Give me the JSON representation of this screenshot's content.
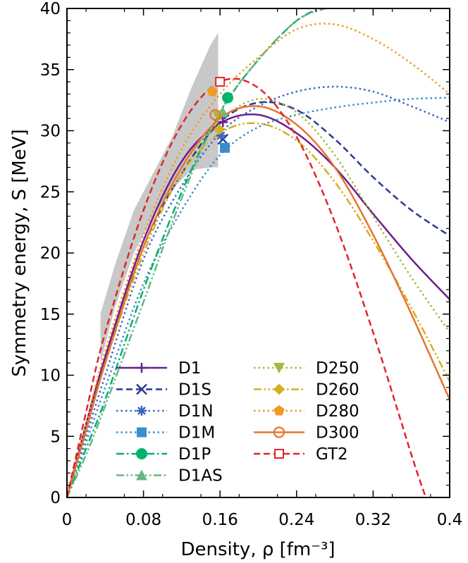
{
  "chart_data": {
    "type": "line",
    "xlabel": "Density, ρ [fm⁻³]",
    "ylabel": "Symmetry energy, S [MeV]",
    "xlim": [
      0,
      0.4
    ],
    "ylim": [
      0,
      40
    ],
    "x_tick_labels": [
      "0",
      "0.08",
      "0.16",
      "0.24",
      "0.32",
      "0.4"
    ],
    "y_tick_labels": [
      "0",
      "5",
      "10",
      "15",
      "20",
      "25",
      "30",
      "35",
      "40"
    ],
    "legend_position": "bottom-left",
    "constraint_band": {
      "x": [
        0.035,
        0.05,
        0.07,
        0.09,
        0.11,
        0.13,
        0.15,
        0.158
      ],
      "lower": [
        11.0,
        15.5,
        20.0,
        23.0,
        25.2,
        26.8,
        27.0,
        27.0
      ],
      "upper": [
        15.0,
        19.0,
        23.5,
        26.5,
        29.5,
        33.5,
        37.0,
        38.0
      ],
      "color": "#c8c8c8"
    },
    "series": [
      {
        "name": "D1",
        "color": "#6a1e8c",
        "dash": "solid",
        "marker": "plus",
        "x": [
          0,
          0.02,
          0.04,
          0.08,
          0.12,
          0.16,
          0.2,
          0.24,
          0.28,
          0.32,
          0.36,
          0.4
        ],
        "y": [
          0,
          6,
          11.5,
          21,
          27.5,
          30.6,
          31.3,
          29.8,
          27,
          23.2,
          19.5,
          16.2
        ],
        "point": [
          0.163,
          30.7
        ]
      },
      {
        "name": "D1S",
        "color": "#2b3a8f",
        "dash": "dash",
        "marker": "x",
        "x": [
          0,
          0.02,
          0.04,
          0.08,
          0.12,
          0.16,
          0.2,
          0.24,
          0.28,
          0.32,
          0.36,
          0.4
        ],
        "y": [
          0,
          5.5,
          11,
          20.5,
          26.5,
          30.7,
          32.3,
          31.7,
          29.3,
          26.2,
          23.5,
          21.4
        ],
        "point": [
          0.163,
          29.3
        ]
      },
      {
        "name": "D1N",
        "color": "#3a66c4",
        "dash": "dot",
        "marker": "asterisk",
        "x": [
          0,
          0.02,
          0.04,
          0.08,
          0.12,
          0.16,
          0.2,
          0.24,
          0.28,
          0.32,
          0.36,
          0.4
        ],
        "y": [
          0,
          5,
          10,
          19.5,
          25.5,
          29.8,
          32,
          33.2,
          33.6,
          33.2,
          32,
          30.7
        ],
        "point": [
          0.161,
          29.6
        ]
      },
      {
        "name": "D1M",
        "color": "#3a8ecc",
        "dash": "dot",
        "marker": "square",
        "x": [
          0,
          0.02,
          0.04,
          0.08,
          0.12,
          0.16,
          0.2,
          0.24,
          0.28,
          0.32,
          0.36,
          0.4
        ],
        "y": [
          0,
          4.5,
          9,
          17.5,
          23.5,
          28,
          30.3,
          31.3,
          31.9,
          32.3,
          32.6,
          32.7
        ],
        "point": [
          0.165,
          28.6
        ]
      },
      {
        "name": "D1P",
        "color": "#00b36b",
        "dash": "dashdot",
        "marker": "circle",
        "x": [
          0,
          0.02,
          0.04,
          0.08,
          0.12,
          0.16,
          0.2,
          0.24,
          0.265
        ],
        "y": [
          0,
          4,
          8,
          17,
          25,
          31.5,
          35.8,
          39,
          40
        ],
        "point": [
          0.168,
          32.7
        ]
      },
      {
        "name": "D1AS",
        "color": "#6bb586",
        "dash": "dashdotdot",
        "marker": "triangle",
        "x": [
          0,
          0.02,
          0.04,
          0.08,
          0.12,
          0.16,
          0.2,
          0.24,
          0.27
        ],
        "y": [
          0,
          3.5,
          7.5,
          16,
          24.5,
          31.5,
          35.8,
          39,
          40
        ],
        "point": [
          0.163,
          31.5
        ]
      },
      {
        "name": "D250",
        "color": "#a7b83c",
        "dash": "dot",
        "marker": "triangle-down",
        "x": [
          0,
          0.02,
          0.04,
          0.08,
          0.12,
          0.16,
          0.2,
          0.24,
          0.28,
          0.32,
          0.36,
          0.4
        ],
        "y": [
          0,
          5.5,
          11,
          20.5,
          27,
          30.8,
          32.6,
          31.5,
          28,
          23,
          18,
          13.5
        ],
        "point": [
          0.158,
          31.2
        ]
      },
      {
        "name": "D260",
        "color": "#d4b020",
        "dash": "dashdotdot",
        "marker": "diamond",
        "x": [
          0,
          0.02,
          0.04,
          0.08,
          0.12,
          0.16,
          0.2,
          0.24,
          0.28,
          0.32,
          0.36,
          0.4
        ],
        "y": [
          0,
          5.5,
          11,
          20,
          26.5,
          29.8,
          30.6,
          29.2,
          25.8,
          21,
          15.5,
          9.5
        ],
        "point": [
          0.159,
          30.1
        ]
      },
      {
        "name": "D280",
        "color": "#f09a20",
        "dash": "dot",
        "marker": "pentagon",
        "x": [
          0,
          0.02,
          0.04,
          0.08,
          0.12,
          0.16,
          0.2,
          0.24,
          0.28,
          0.32,
          0.36,
          0.4
        ],
        "y": [
          0,
          6,
          12,
          21.5,
          28.5,
          33,
          36,
          38.3,
          38.7,
          37.5,
          35.5,
          33
        ],
        "point": [
          0.152,
          33.2
        ]
      },
      {
        "name": "D300",
        "color": "#e8742c",
        "dash": "solid",
        "marker": "circle-open",
        "x": [
          0,
          0.02,
          0.04,
          0.08,
          0.12,
          0.16,
          0.2,
          0.24,
          0.28,
          0.32,
          0.36,
          0.4
        ],
        "y": [
          0,
          5.5,
          11,
          20.5,
          27,
          31,
          32,
          30.5,
          27,
          21.5,
          15,
          8
        ],
        "point": [
          0.155,
          31.3
        ]
      },
      {
        "name": "GT2",
        "color": "#e0262a",
        "dash": "dash",
        "marker": "square-open",
        "x": [
          0,
          0.02,
          0.04,
          0.08,
          0.12,
          0.16,
          0.2,
          0.24,
          0.28,
          0.32,
          0.36,
          0.375
        ],
        "y": [
          0,
          7,
          13.5,
          23.5,
          30.5,
          34,
          33.5,
          29.5,
          22.5,
          13.5,
          3.5,
          0
        ],
        "point": [
          0.16,
          34.0
        ]
      }
    ]
  }
}
